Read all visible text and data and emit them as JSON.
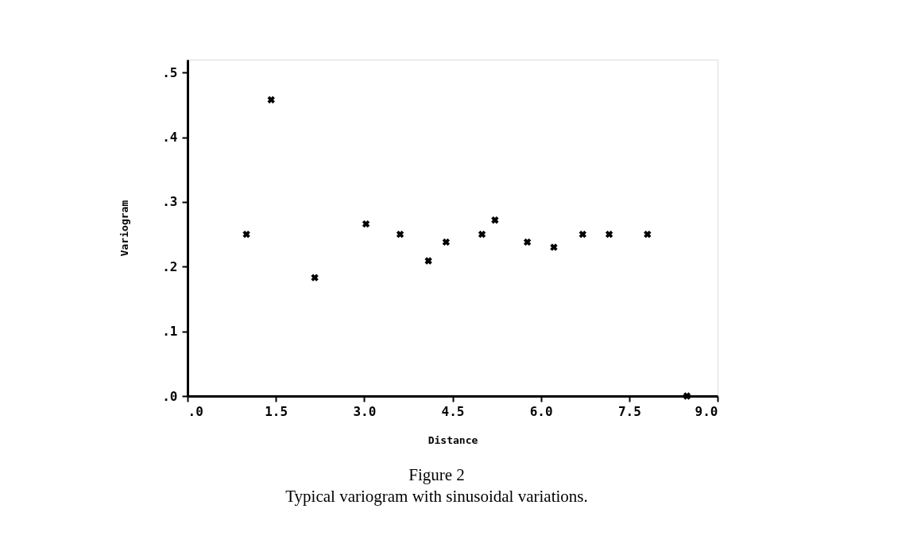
{
  "chart_data": {
    "type": "scatter",
    "xlabel": "Distance",
    "ylabel": "Variogram",
    "annotations": [
      "Figure 2",
      "Typical variogram with sinusoidal variations."
    ],
    "x": [
      1.0,
      1.42,
      2.16,
      3.03,
      3.61,
      4.09,
      4.39,
      5.0,
      5.22,
      5.77,
      6.22,
      6.71,
      7.16,
      7.81,
      8.48
    ],
    "series": [
      {
        "color": "#000000",
        "values": [
          0.25,
          0.458,
          0.183,
          0.266,
          0.25,
          0.209,
          0.238,
          0.25,
          0.272,
          0.238,
          0.23,
          0.25,
          0.25,
          0.25,
          0.0
        ]
      }
    ],
    "xlim": [
      0,
      9.0
    ],
    "ylim": [
      0,
      0.52
    ],
    "xticks": [
      {
        "value": 0,
        "label": ".0"
      },
      {
        "value": 1.5,
        "label": "1.5"
      },
      {
        "value": 3.0,
        "label": "3.0"
      },
      {
        "value": 4.5,
        "label": "4.5"
      },
      {
        "value": 6.0,
        "label": "6.0"
      },
      {
        "value": 7.5,
        "label": "7.5"
      },
      {
        "value": 9.0,
        "label": "9.0"
      }
    ],
    "yticks": [
      {
        "value": 0,
        "label": ".0"
      },
      {
        "value": 0.1,
        "label": ".1"
      },
      {
        "value": 0.2,
        "label": ".2"
      },
      {
        "value": 0.3,
        "label": ".3"
      },
      {
        "value": 0.4,
        "label": ".4"
      },
      {
        "value": 0.5,
        "label": ".5"
      }
    ],
    "grid": false,
    "legend": false,
    "marker": "cross"
  }
}
